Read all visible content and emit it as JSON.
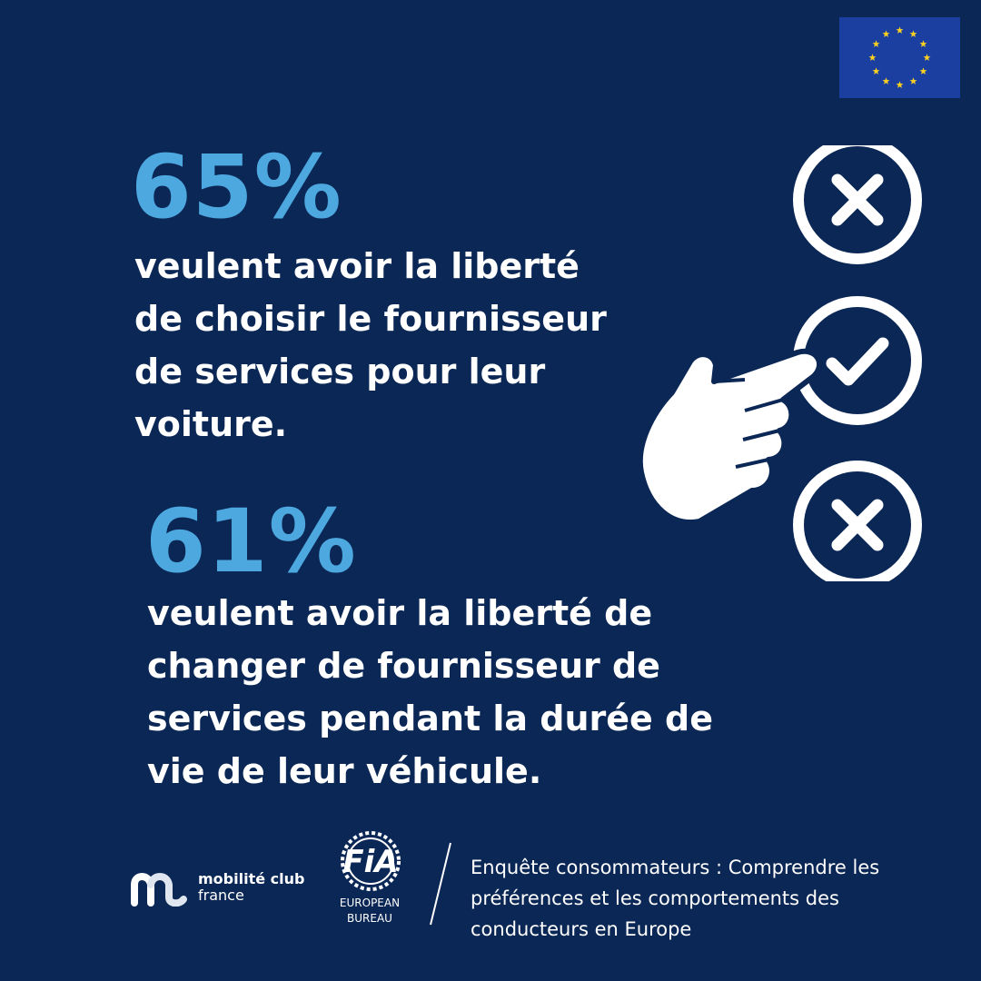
{
  "stats": [
    {
      "percent": "65%",
      "text": "veulent avoir la liberté\nde choisir le fournisseur\nde services pour leur\nvoiture."
    },
    {
      "percent": "61%",
      "text": "veulent avoir la liberté de\nchanger de fournisseur de\nservices pendant la durée de\nvie de leur véhicule."
    }
  ],
  "footer": {
    "mobilite_club_name": "mobilité club",
    "mobilite_club_sub": "france",
    "fia_wordmark": "FiA",
    "fia_sub_line1": "EUROPEAN",
    "fia_sub_line2": "BUREAU",
    "survey_title": "Enquête consommateurs : Comprendre les\npréférences et les comportements des\nconducteurs en Europe"
  },
  "colors": {
    "background": "#0b2756",
    "accent": "#4ea8e0",
    "eu_flag": "#1a3fa0",
    "eu_stars": "#ffd21f"
  },
  "icons": [
    "eu-flag-icon",
    "x-circle-icon",
    "check-circle-icon",
    "pointing-hand-icon",
    "x-circle-icon"
  ]
}
